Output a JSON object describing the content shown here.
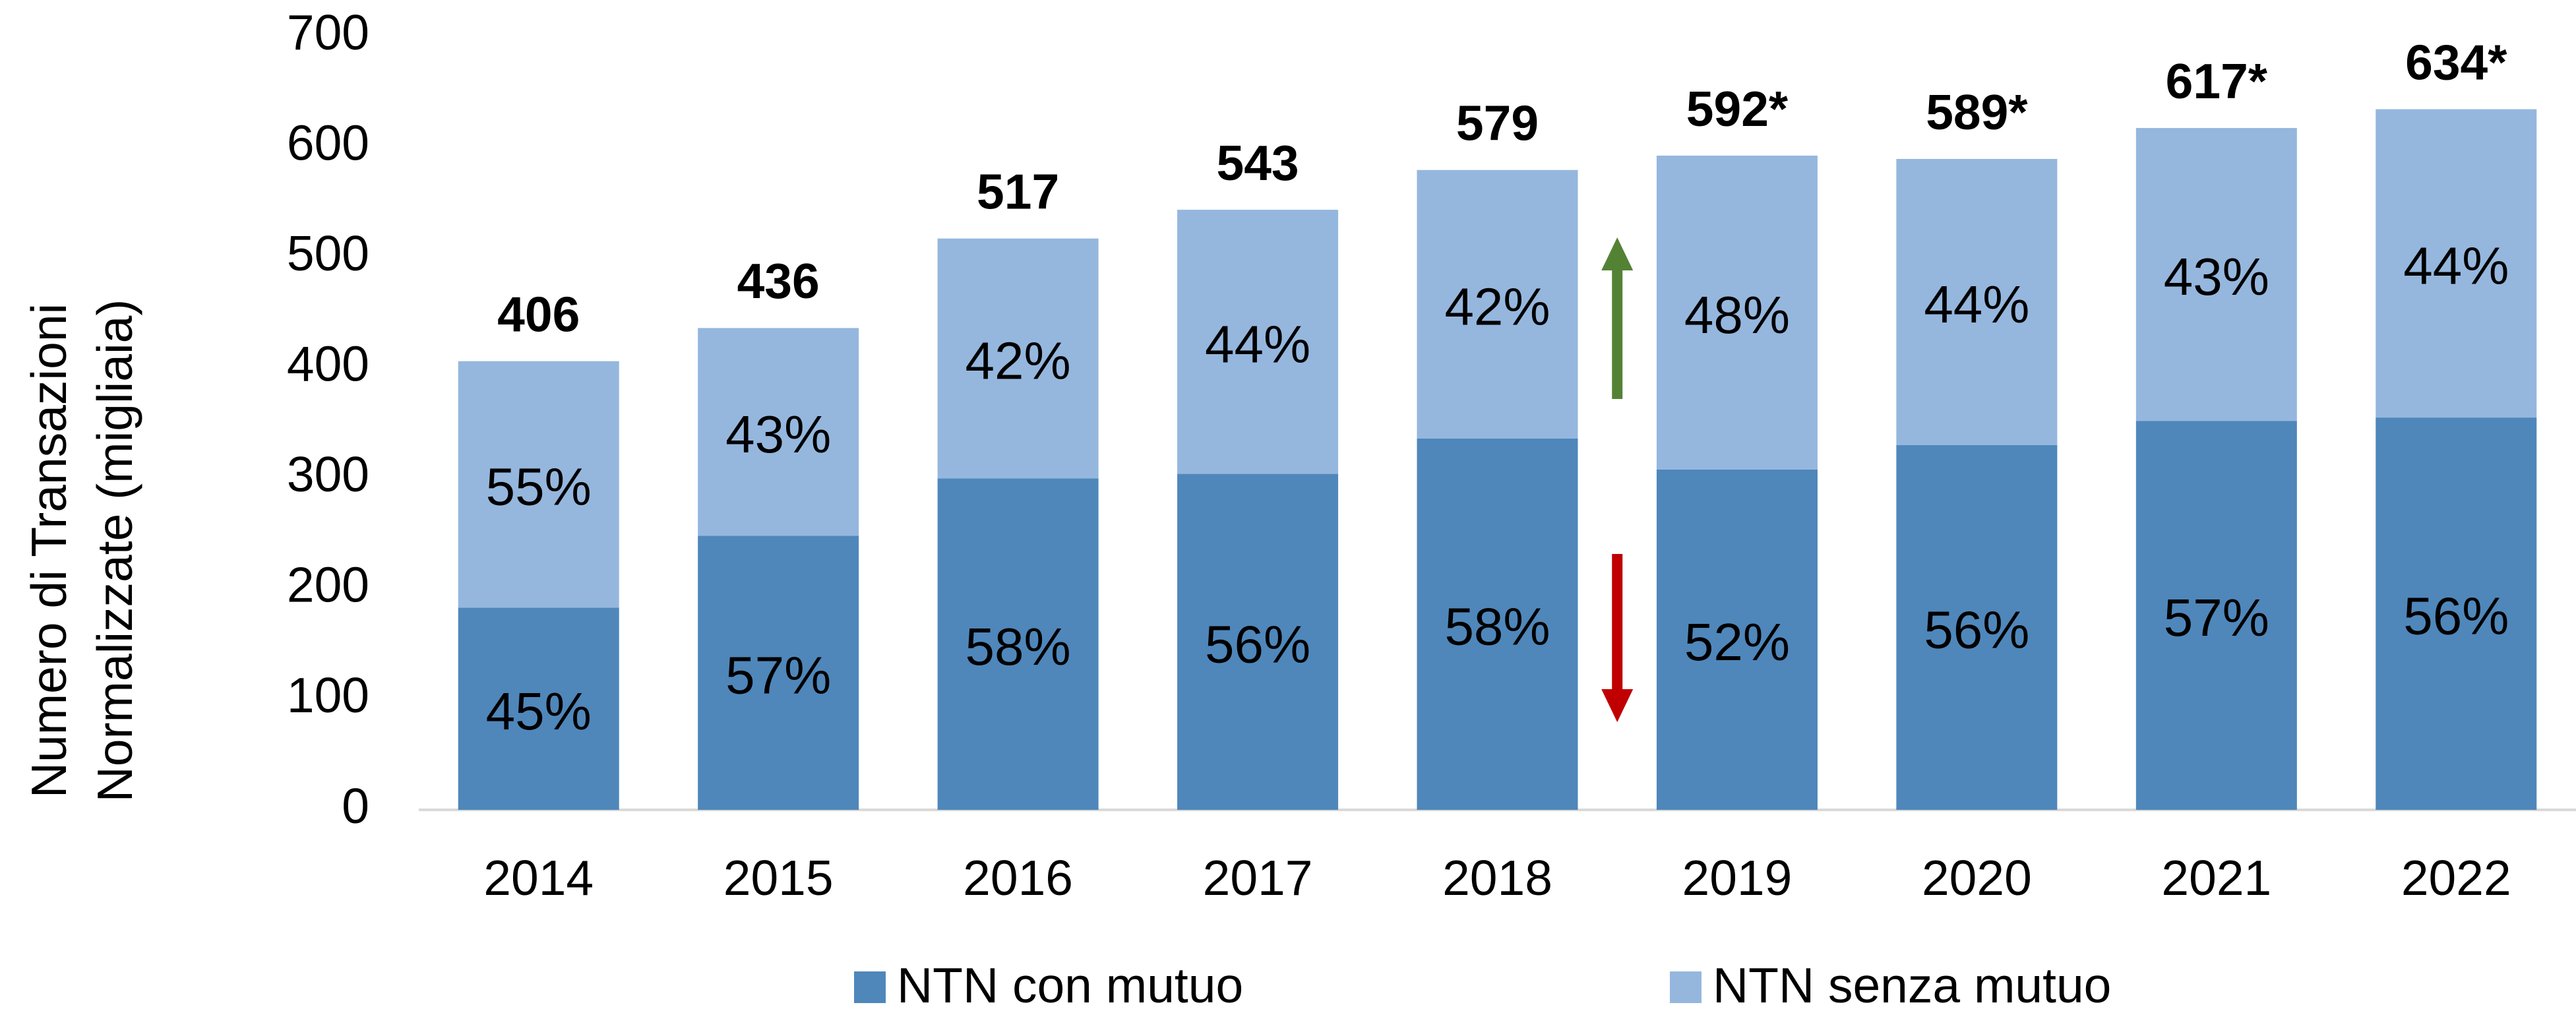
{
  "chart_data": {
    "type": "stacked_bar",
    "categories": [
      "2014",
      "2015",
      "2016",
      "2017",
      "2018",
      "2019",
      "2020",
      "2021",
      "2022"
    ],
    "y_label": [
      "Numero di Transazioni",
      "Normalizzate (migliaia)"
    ],
    "series": [
      {
        "name": "NTN con mutuo",
        "color": "#4f87bb",
        "values": [
          183,
          248,
          300,
          304,
          336,
          308,
          330,
          352,
          355
        ],
        "value_labels": [
          "45%",
          "57%",
          "58%",
          "56%",
          "58%",
          "52%",
          "56%",
          "57%",
          "56%"
        ]
      },
      {
        "name": "NTN senza mutuo",
        "color": "#95b7de",
        "values": [
          223,
          188,
          217,
          239,
          243,
          284,
          259,
          265,
          279
        ],
        "value_labels": [
          "55%",
          "43%",
          "42%",
          "44%",
          "42%",
          "48%",
          "44%",
          "43%",
          "44%"
        ]
      }
    ],
    "totals": {
      "values": [
        406,
        436,
        517,
        543,
        579,
        592,
        589,
        617,
        634
      ],
      "value_labels": [
        "406",
        "436",
        "517",
        "543",
        "579",
        "592*",
        "589*",
        "617*",
        "634*"
      ]
    },
    "ylim": [
      0,
      700
    ],
    "yticks": [
      0,
      100,
      200,
      300,
      400,
      500,
      600,
      700
    ],
    "grid": false
  }
}
